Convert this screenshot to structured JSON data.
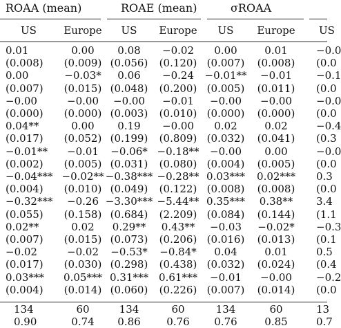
{
  "groups": [
    {
      "label": "ROAA (mean)"
    },
    {
      "label": "ROAE (mean)"
    },
    {
      "label": "σROAA"
    },
    {
      "label": ""
    }
  ],
  "subheaders": [
    "US",
    "Europe",
    "US",
    "Europe",
    "US",
    "Europe",
    "US"
  ],
  "rows": [
    [
      "0.01",
      "0.00",
      "0.08",
      "−0.02",
      "0.00",
      "0.01",
      "−0.0"
    ],
    [
      "(0.008)",
      "(0.009)",
      "(0.056)",
      "(0.120)",
      "(0.007)",
      "(0.008)",
      "(0.0"
    ],
    [
      "0.00",
      "−0.03*",
      "0.06",
      "−0.24",
      "−0.01**",
      "−0.01",
      "−0.1"
    ],
    [
      "(0.007)",
      "(0.015)",
      "(0.048)",
      "(0.200)",
      "(0.005)",
      "(0.011)",
      "(0.0"
    ],
    [
      "−0.00",
      "−0.00",
      "−0.00",
      "−0.01",
      "−0.00",
      "−0.00",
      "−0.0"
    ],
    [
      "(0.000)",
      "(0.000)",
      "(0.003)",
      "(0.010)",
      "(0.000)",
      "(0.000)",
      "(0.0"
    ],
    [
      "0.04**",
      "0.00",
      "0.19",
      "−0.00",
      "0.02",
      "0.02",
      "−0.4"
    ],
    [
      "(0.017)",
      "(0.052)",
      "(0.199)",
      "(0.809)",
      "(0.032)",
      "(0.041)",
      "(0.3"
    ],
    [
      "−0.01**",
      "−0.01",
      "−0.06*",
      "−0.18**",
      "−0.00",
      "0.00",
      "−0.0"
    ],
    [
      "(0.002)",
      "(0.005)",
      "(0.031)",
      "(0.080)",
      "(0.004)",
      "(0.005)",
      "(0.0"
    ],
    [
      "−0.04***",
      "−0.02**",
      "−0.38***",
      "−0.28**",
      "0.03***",
      "0.02***",
      "0.3"
    ],
    [
      "(0.004)",
      "(0.010)",
      "(0.049)",
      "(0.122)",
      "(0.008)",
      "(0.008)",
      "(0.0"
    ],
    [
      "−0.32***",
      "−0.26",
      "−3.30***",
      "−5.44**",
      "0.35***",
      "0.38**",
      "3.4"
    ],
    [
      "(0.055)",
      "(0.158)",
      "(0.684)",
      "(2.209)",
      "(0.084)",
      "(0.144)",
      "(1.1"
    ],
    [
      "0.02**",
      "0.02",
      "0.29**",
      "0.43**",
      "−0.03",
      "−0.02*",
      "−0.3"
    ],
    [
      "(0.007)",
      "(0.015)",
      "(0.073)",
      "(0.206)",
      "(0.016)",
      "(0.013)",
      "(0.1"
    ],
    [
      "−0.02",
      "−0.02",
      "−0.53*",
      "−0.84*",
      "0.04",
      "0.01",
      "0.5"
    ],
    [
      "(0.017)",
      "(0.030)",
      "(0.298)",
      "(0.438)",
      "(0.032)",
      "(0.024)",
      "(0.4"
    ],
    [
      "0.03***",
      "0.05***",
      "0.31***",
      "0.61***",
      "−0.01",
      "−0.00",
      "−0.2"
    ],
    [
      "(0.004)",
      "(0.014)",
      "(0.060)",
      "(0.226)",
      "(0.007)",
      "(0.014)",
      "(0.0"
    ]
  ],
  "stats": [
    [
      "134",
      "60",
      "134",
      "60",
      "134",
      "60",
      "13"
    ],
    [
      "0.90",
      "0.74",
      "0.86",
      "0.76",
      "0.76",
      "0.85",
      "0.7"
    ]
  ]
}
